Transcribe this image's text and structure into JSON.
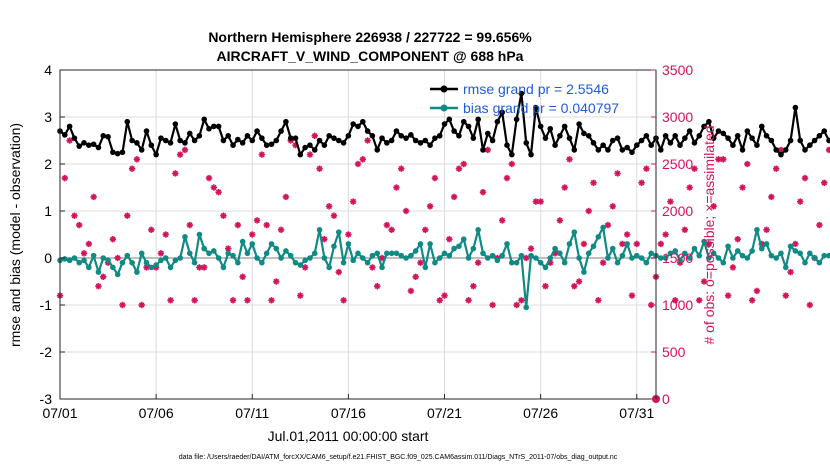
{
  "chart_data": {
    "type": "line",
    "title_line1": "Northern Hemisphere 226938 / 227722 = 99.656%",
    "title_line2": "AIRCRAFT_V_WIND_COMPONENT @ 688 hPa",
    "xlabel": "Jul.01,2011 00:00:00 start",
    "ylabel_left": "rmse and bias (model - observation)",
    "ylabel_right": "# of obs: o=possible; ×=assimilated",
    "x_ticks": [
      "07/01",
      "07/06",
      "07/11",
      "07/16",
      "07/21",
      "07/26",
      "07/31"
    ],
    "x_tick_days": [
      0,
      5,
      10,
      15,
      20,
      25,
      30
    ],
    "xlim_days": [
      0,
      31
    ],
    "y_left_ticks": [
      "-3",
      "-2",
      "-1",
      "0",
      "1",
      "2",
      "3",
      "4"
    ],
    "ylim_left": [
      -3,
      4
    ],
    "y_right_ticks": [
      "0",
      "500",
      "1000",
      "1500",
      "2000",
      "2500",
      "3000",
      "3500"
    ],
    "ylim_right": [
      0,
      3500
    ],
    "zero_line": 0,
    "grid": true,
    "legend_position": "top-right",
    "step_days": 0.25,
    "series": [
      {
        "name": "rmse grand pr = 2.5546",
        "axis": "left",
        "color": "#000000",
        "values": [
          2.7,
          2.62,
          2.8,
          2.55,
          2.38,
          2.45,
          2.4,
          2.42,
          2.35,
          2.6,
          2.58,
          2.25,
          2.22,
          2.25,
          2.9,
          2.5,
          2.45,
          2.3,
          2.7,
          2.4,
          2.2,
          2.55,
          2.5,
          2.45,
          2.85,
          2.5,
          2.45,
          2.65,
          2.5,
          2.6,
          2.95,
          2.75,
          2.8,
          2.8,
          2.5,
          2.6,
          2.4,
          2.52,
          2.45,
          2.6,
          2.5,
          2.7,
          2.55,
          2.4,
          2.42,
          2.5,
          2.7,
          2.9,
          2.55,
          2.55,
          2.2,
          2.35,
          2.4,
          2.3,
          2.5,
          2.4,
          2.6,
          2.55,
          2.5,
          2.45,
          2.6,
          2.85,
          2.8,
          2.9,
          2.7,
          2.6,
          2.3,
          2.55,
          2.45,
          2.5,
          2.7,
          2.6,
          2.55,
          2.62,
          2.5,
          2.45,
          2.5,
          2.4,
          2.55,
          2.6,
          2.85,
          2.95,
          2.7,
          2.6,
          2.9,
          2.8,
          2.55,
          2.95,
          2.3,
          2.65,
          2.5,
          2.9,
          3.1,
          2.4,
          2.2,
          2.95,
          3.5,
          2.45,
          2.2,
          3.2,
          2.8,
          2.55,
          2.75,
          2.4,
          2.6,
          2.8,
          2.55,
          2.3,
          2.85,
          2.65,
          2.6,
          2.45,
          2.3,
          2.4,
          2.3,
          2.5,
          2.55,
          2.3,
          2.35,
          2.25,
          2.4,
          2.5,
          2.6,
          2.4,
          2.55,
          2.3,
          2.6,
          2.45,
          2.6,
          2.4,
          2.55,
          2.7,
          2.45,
          2.6,
          2.8,
          2.9,
          2.55,
          2.7,
          2.65,
          2.55,
          2.4,
          2.6,
          2.3,
          2.7,
          2.55,
          2.4,
          2.8,
          2.6,
          2.5,
          2.3,
          2.2,
          2.3,
          2.5,
          3.2,
          2.5,
          2.3,
          2.4,
          2.5,
          2.6,
          2.7,
          2.5,
          2.4,
          2.3,
          2.6,
          2.2,
          2.4,
          2.5,
          2.6,
          2.4,
          2.3,
          2.5,
          2.3,
          3.0,
          2.95,
          2.25,
          2.35,
          2.5,
          2.3,
          2.2,
          2.35,
          2.25,
          2.2
        ]
      },
      {
        "name": "bias grand pr = 0.040797",
        "axis": "left",
        "color": "#0f8a85",
        "values": [
          -0.05,
          -0.02,
          -0.05,
          0.0,
          -0.1,
          -0.05,
          -0.2,
          0.05,
          -0.3,
          0.0,
          -0.05,
          -0.2,
          -0.35,
          -0.1,
          0.05,
          -0.1,
          -0.3,
          0.1,
          -0.1,
          -0.2,
          -0.15,
          -0.05,
          0.0,
          -0.2,
          -0.05,
          0.0,
          0.45,
          0.1,
          -0.1,
          0.5,
          0.2,
          0.1,
          0.15,
          0.0,
          -0.2,
          0.1,
          0.05,
          -0.1,
          0.35,
          0.1,
          0.3,
          0.0,
          -0.1,
          0.1,
          0.3,
          0.2,
          0.0,
          0.15,
          0.05,
          -0.1,
          -0.15,
          -0.05,
          0.0,
          0.1,
          0.6,
          0.0,
          -0.2,
          0.25,
          0.55,
          -0.1,
          0.3,
          -0.05,
          0.1,
          0.0,
          -0.1,
          0.05,
          0.1,
          -0.2,
          0.1,
          0.1,
          0.1,
          0.05,
          0.0,
          0.05,
          0.15,
          0.3,
          -0.2,
          0.3,
          -0.1,
          0.0,
          0.1,
          0.05,
          0.2,
          0.25,
          0.4,
          0.0,
          0.2,
          0.6,
          0.1,
          0.0,
          0.05,
          -0.05,
          0.05,
          0.3,
          -0.1,
          -0.1,
          0.05,
          -1.05,
          0.05,
          0.0,
          -0.1,
          -0.2,
          0.0,
          0.2,
          0.1,
          -0.1,
          0.3,
          0.55,
          0.0,
          -0.3,
          0.1,
          0.25,
          0.45,
          0.65,
          0.0,
          0.2,
          -0.1,
          0.05,
          0.3,
          0.0,
          0.05,
          0.0,
          -0.1,
          0.1,
          0.05,
          0.0,
          0.0,
          0.1,
          0.15,
          -0.05,
          0.1,
          0.0,
          0.2,
          0.05,
          0.35,
          0.0,
          0.1,
          0.0,
          -0.1,
          0.25,
          0.0,
          0.15,
          0.05,
          0.0,
          0.15,
          0.6,
          0.2,
          0.3,
          0.05,
          0.0,
          0.1,
          -0.2,
          0.25,
          0.15,
          0.1,
          -0.1,
          0.1,
          0.0,
          -0.1,
          0.05,
          0.05,
          0.1,
          -0.2,
          0.0,
          0.1,
          -0.35,
          -0.1,
          0.3,
          0.0,
          -0.15,
          0.15,
          0.35,
          0.3,
          0.25,
          0.1,
          0.0,
          -0.15,
          -0.2,
          -0.15,
          -0.2,
          -0.2,
          -0.2
        ]
      }
    ],
    "obs_marker_color": "#d3145a",
    "obs_counts": [
      1100,
      2350,
      2750,
      1950,
      1850,
      1550,
      1650,
      2150,
      1200,
      1300,
      1450,
      1700,
      1500,
      1000,
      1950,
      2450,
      2550,
      1000,
      1400,
      1800,
      1400,
      1550,
      1750,
      1050,
      2400,
      2600,
      2650,
      1850,
      1050,
      1400,
      1400,
      2350,
      2250,
      2200,
      1950,
      1600,
      1050,
      1850,
      1300,
      1050,
      1750,
      1900,
      2600,
      1850,
      1050,
      1250,
      1800,
      2150,
      2750,
      2700,
      1100,
      1400,
      2600,
      2800,
      2450,
      1700,
      2050,
      1950,
      1350,
      1050,
      1750,
      2100,
      2500,
      2550,
      2750,
      1400,
      1200,
      1500,
      1850,
      1800,
      2250,
      2450,
      2000,
      1150,
      1300,
      1450,
      1800,
      2050,
      2350,
      1050,
      1100,
      1700,
      2150,
      2450,
      2500,
      1050,
      1200,
      1450,
      2200,
      2650,
      1000,
      1500,
      1900,
      2350,
      2500,
      1000,
      1050,
      1500,
      1600,
      2100,
      2100,
      1200,
      1450,
      1550,
      1900,
      2250,
      2550,
      1200,
      1250,
      1650,
      2000,
      2300,
      1050,
      1450,
      1850,
      2050,
      2400,
      1650,
      1750,
      1100,
      1650,
      2300,
      2450,
      1000,
      1300,
      1650,
      1750,
      2100,
      1050,
      1450,
      1800,
      2250,
      2450,
      1050,
      1250,
      1650,
      2050,
      2550,
      2550,
      1100,
      1400,
      1700,
      2250,
      2500,
      1050,
      1150,
      1650,
      1800,
      2150,
      2450,
      2650,
      1100,
      1350,
      1650,
      2100,
      2350,
      1000,
      1500,
      1850,
      2300,
      2650,
      1000,
      1350,
      1700,
      2050,
      2100,
      2650,
      1200,
      1300,
      1700,
      2350,
      2500,
      2450,
      1100,
      1400,
      1850,
      2300,
      2600,
      1800
    ]
  },
  "footnote": "data file: /Users/raeder/DAI/ATM_forcXX/CAM6_setup/f.e21.FHIST_BGC.f09_025.CAM6assim.011/Diags_NTrS_2011-07/obs_diag_output.nc"
}
